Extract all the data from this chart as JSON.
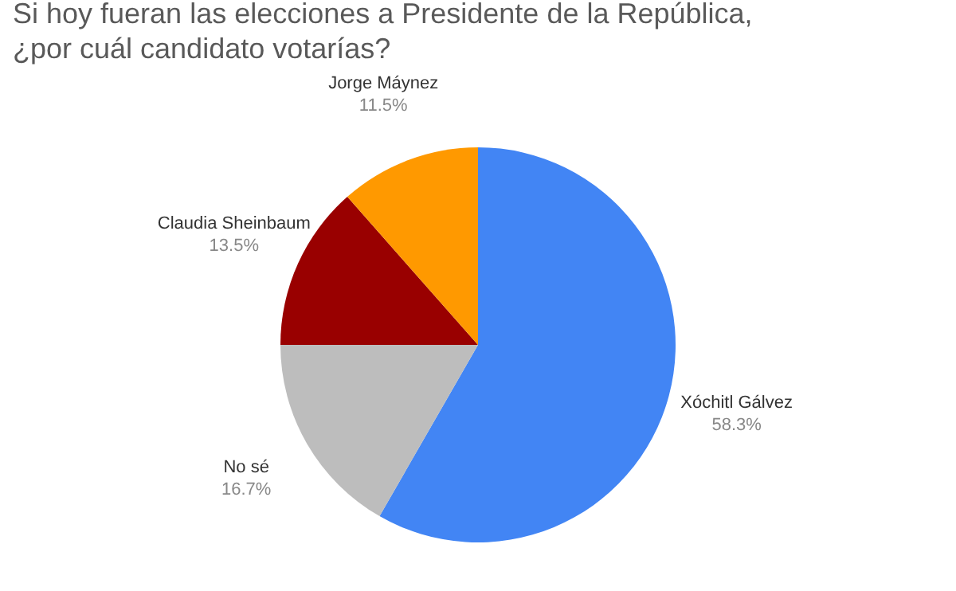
{
  "chart_data": {
    "type": "pie",
    "title": "Si hoy fueran las elecciones a Presidente de la República, ¿por cuál candidato votarías?",
    "categories": [
      "Xóchitl Gálvez",
      "No sé",
      "Claudia Sheinbaum",
      "Jorge Máynez"
    ],
    "values": [
      58.3,
      16.7,
      13.5,
      11.5
    ],
    "colors": [
      "#4285f4",
      "#bdbdbd",
      "#990000",
      "#ff9900"
    ],
    "value_labels": [
      "58.3%",
      "16.7%",
      "13.5%",
      "11.5%"
    ]
  }
}
